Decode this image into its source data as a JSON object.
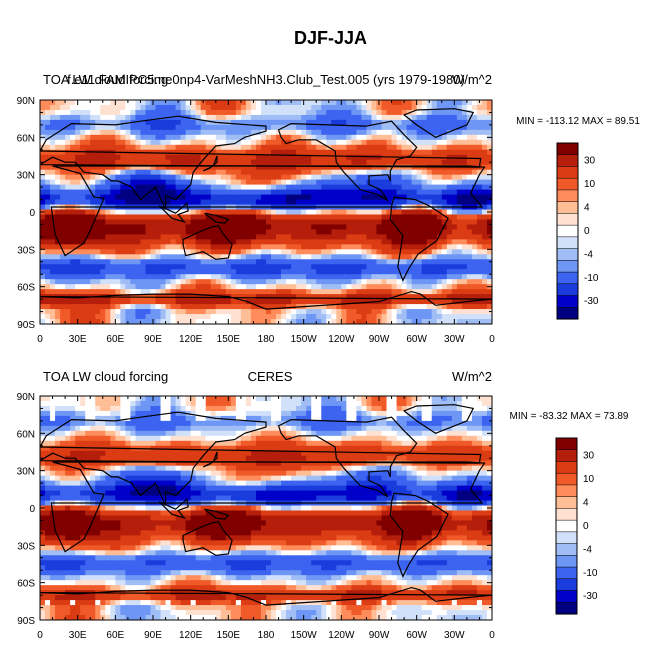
{
  "page_title": "DJF-JJA",
  "colors": {
    "scale": [
      "#000080",
      "#0000c8",
      "#1a3cdc",
      "#3c64f0",
      "#6e96f5",
      "#a0bef5",
      "#d2e1fa",
      "#ffffff",
      "#ffe1d2",
      "#ffbe96",
      "#ff8c5a",
      "#f05a28",
      "#dc3c14",
      "#b41e0a",
      "#800000"
    ],
    "coast": "#000000",
    "missing": "#ffffff"
  },
  "chart_data": [
    {
      "type": "heatmap",
      "id": "model",
      "title_left": "TOA LW cloud forcing",
      "title_center": "f.e11.FAMIPC5.ne0np4-VarMeshNH3.Club_Test.005 (yrs 1979-1980)",
      "units": "W/m^2",
      "stats_label": "MIN = -113.12 MAX =  89.51",
      "min": -113.12,
      "max": 89.51,
      "contour_levels": [
        -40,
        -30,
        -20,
        -10,
        -6,
        -4,
        -2,
        0,
        2,
        4,
        6,
        10,
        20,
        30
      ],
      "colorbar_labels": [
        30,
        10,
        4,
        0,
        -4,
        -10,
        -30
      ],
      "x_ticks": [
        "0",
        "30E",
        "60E",
        "90E",
        "120E",
        "150E",
        "180",
        "150W",
        "120W",
        "90W",
        "60W",
        "30W",
        "0"
      ],
      "y_ticks": [
        "90N",
        "60N",
        "30N",
        "0",
        "30S",
        "60S",
        "90S"
      ],
      "lon_range": [
        0,
        360
      ],
      "lat_range": [
        -90,
        90
      ]
    },
    {
      "type": "heatmap",
      "id": "obs",
      "title_left": "TOA LW cloud forcing",
      "title_center": "CERES",
      "units": "W/m^2",
      "stats_label": "MIN = -83.32 MAX =  73.89",
      "min": -83.32,
      "max": 73.89,
      "contour_levels": [
        -40,
        -30,
        -20,
        -10,
        -6,
        -4,
        -2,
        0,
        2,
        4,
        6,
        10,
        20,
        30
      ],
      "colorbar_labels": [
        30,
        10,
        4,
        0,
        -4,
        -10,
        -30
      ],
      "x_ticks": [
        "0",
        "30E",
        "60E",
        "90E",
        "120E",
        "150E",
        "180",
        "150W",
        "120W",
        "90W",
        "60W",
        "30W",
        "0"
      ],
      "y_ticks": [
        "90N",
        "60N",
        "30N",
        "0",
        "30S",
        "60S",
        "90S"
      ],
      "lon_range": [
        0,
        360
      ],
      "lat_range": [
        -90,
        90
      ]
    }
  ]
}
